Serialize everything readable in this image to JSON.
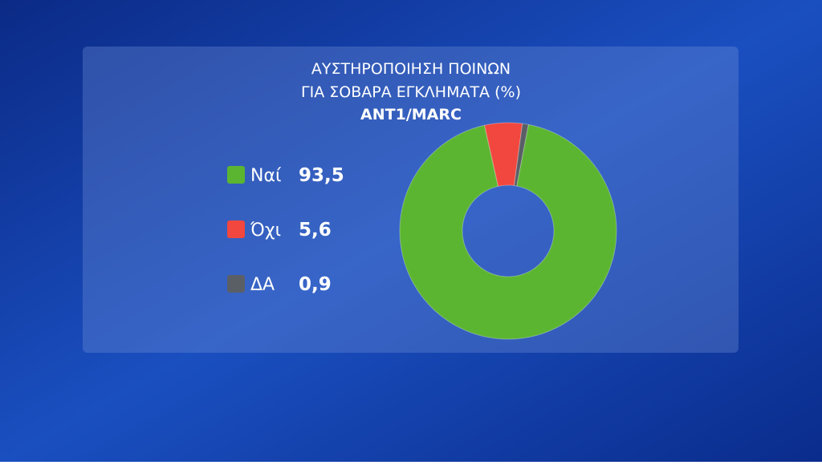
{
  "chart_data": {
    "type": "donut",
    "title": [
      "ΑΥΣΤΗΡΟΠΟΙΗΣΗ  ΠΟΙΝΩΝ",
      "ΓΙΑ ΣΟΒΑΡΑ ΕΓΚΛΗΜΑΤΑ (%)"
    ],
    "subtitle": "ANT1/MARC",
    "categories": [
      "Ναί",
      "Όχι",
      "ΔΑ"
    ],
    "values": [
      93.5,
      5.6,
      0.9
    ],
    "value_labels": [
      "93,5",
      "5,6",
      "0,9"
    ],
    "colors": [
      "#5cb531",
      "#f2473e",
      "#5a5f66"
    ]
  }
}
